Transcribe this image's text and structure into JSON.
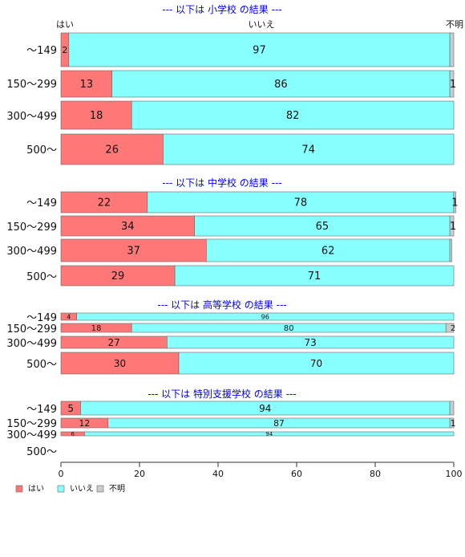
{
  "chart_data": {
    "type": "bar",
    "orientation": "horizontal",
    "stacked": true,
    "header_labels": [
      "はい",
      "いいえ",
      "不明"
    ],
    "series_names": [
      "はい",
      "いいえ",
      "不明"
    ],
    "colors": {
      "yes": "#ff7777",
      "no": "#88ffff",
      "unknown": "#cccccc",
      "title": "#0000ee"
    },
    "xlim": [
      0,
      100
    ],
    "xticks": [
      "0",
      "20",
      "40",
      "60",
      "80",
      "100"
    ],
    "legend_position": "bottom-left",
    "grid": false,
    "sections": [
      {
        "title": "--- 以下は 小学校 の結果 ---",
        "rows": [
          {
            "category": "～149",
            "values": [
              2,
              97,
              1
            ],
            "labels": [
              "2",
              "97",
              ""
            ]
          },
          {
            "category": "150～299",
            "values": [
              13,
              86,
              1
            ],
            "labels": [
              "13",
              "86",
              "1"
            ]
          },
          {
            "category": "300～499",
            "values": [
              18,
              82,
              0
            ],
            "labels": [
              "18",
              "82",
              ""
            ]
          },
          {
            "category": "500～",
            "values": [
              26,
              74,
              0
            ],
            "labels": [
              "26",
              "74",
              ""
            ]
          }
        ]
      },
      {
        "title": "--- 以下は 中学校 の結果 ---",
        "rows": [
          {
            "category": "～149",
            "values": [
              22,
              78,
              0.5
            ],
            "labels": [
              "22",
              "78",
              "1"
            ]
          },
          {
            "category": "150～299",
            "values": [
              34,
              65,
              1
            ],
            "labels": [
              "34",
              "65",
              "1"
            ]
          },
          {
            "category": "300～499",
            "values": [
              37,
              62,
              0.5
            ],
            "labels": [
              "37",
              "62",
              ""
            ]
          },
          {
            "category": "500～",
            "values": [
              29,
              71,
              0
            ],
            "labels": [
              "29",
              "71",
              ""
            ]
          }
        ]
      },
      {
        "title": "--- 以下は 高等学校 の結果 ---",
        "rows": [
          {
            "category": "～149",
            "values": [
              4,
              96,
              0
            ],
            "labels": [
              "4",
              "96",
              ""
            ]
          },
          {
            "category": "150～299",
            "values": [
              18,
              80,
              2
            ],
            "labels": [
              "18",
              "80",
              "2"
            ]
          },
          {
            "category": "300～499",
            "values": [
              27,
              73,
              0
            ],
            "labels": [
              "27",
              "73",
              ""
            ]
          },
          {
            "category": "500～",
            "values": [
              30,
              70,
              0
            ],
            "labels": [
              "30",
              "70",
              ""
            ]
          }
        ]
      },
      {
        "title": "--- 以下は 特別支援学校 の結果 ---",
        "rows": [
          {
            "category": "～149",
            "values": [
              5,
              94,
              1
            ],
            "labels": [
              "5",
              "94",
              ""
            ]
          },
          {
            "category": "150～299",
            "values": [
              12,
              87,
              1
            ],
            "labels": [
              "12",
              "87",
              "1"
            ]
          },
          {
            "category": "300～499",
            "values": [
              6,
              94,
              0
            ],
            "labels": [
              "6",
              "94",
              ""
            ]
          },
          {
            "category": "500～",
            "values": [
              0,
              0,
              0
            ],
            "labels": [
              "",
              "",
              ""
            ]
          }
        ]
      }
    ]
  }
}
